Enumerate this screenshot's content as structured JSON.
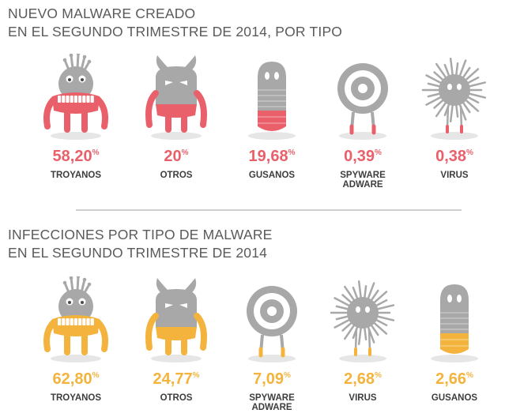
{
  "colors": {
    "gray": "#a8a8a8",
    "shadow": "#e6e6e6",
    "pink": "#e9606b",
    "orange": "#f3b33d",
    "label_dark": "#3d3d3d",
    "title": "#5a5a5a"
  },
  "chart_data": [
    {
      "type": "bar",
      "title_lines": [
        "NUEVO MALWARE CREADO",
        "EN EL SEGUNDO TRIMESTRE DE 2014, POR TIPO"
      ],
      "unit": "%",
      "accent_color": "#e9606b",
      "items": [
        {
          "value": 58.2,
          "value_text": "58,20",
          "label_lines": [
            "TROYANOS"
          ],
          "icon": "trojan-monster"
        },
        {
          "value": 20,
          "value_text": "20",
          "label_lines": [
            "OTROS"
          ],
          "icon": "horned-monster"
        },
        {
          "value": 19.68,
          "value_text": "19,68",
          "label_lines": [
            "GUSANOS"
          ],
          "icon": "worm-monster"
        },
        {
          "value": 0.39,
          "value_text": "0,39",
          "label_lines": [
            "SPYWARE",
            "ADWARE"
          ],
          "icon": "eyeball-monster"
        },
        {
          "value": 0.38,
          "value_text": "0,38",
          "label_lines": [
            "VIRUS"
          ],
          "icon": "spiky-virus-monster"
        }
      ]
    },
    {
      "type": "bar",
      "title_lines": [
        "INFECCIONES POR TIPO DE MALWARE",
        "EN EL SEGUNDO TRIMESTRE DE 2014"
      ],
      "unit": "%",
      "accent_color": "#f3b33d",
      "items": [
        {
          "value": 62.8,
          "value_text": "62,80",
          "label_lines": [
            "TROYANOS"
          ],
          "icon": "trojan-monster"
        },
        {
          "value": 24.77,
          "value_text": "24,77",
          "label_lines": [
            "OTROS"
          ],
          "icon": "horned-monster"
        },
        {
          "value": 7.09,
          "value_text": "7,09",
          "label_lines": [
            "SPYWARE",
            "ADWARE"
          ],
          "icon": "eyeball-monster"
        },
        {
          "value": 2.68,
          "value_text": "2,68",
          "label_lines": [
            "VIRUS"
          ],
          "icon": "spiky-virus-monster"
        },
        {
          "value": 2.66,
          "value_text": "2,66",
          "label_lines": [
            "GUSANOS"
          ],
          "icon": "worm-monster"
        }
      ]
    }
  ]
}
